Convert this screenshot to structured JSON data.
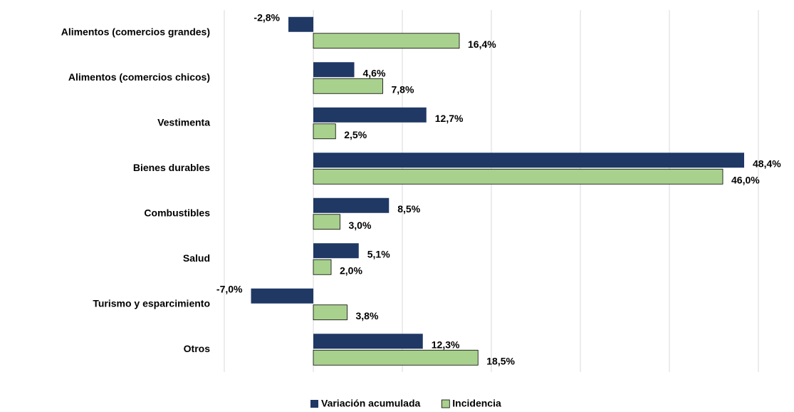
{
  "chart_data": {
    "type": "bar",
    "orientation": "horizontal",
    "categories": [
      "Alimentos (comercios grandes)",
      "Alimentos (comercios chicos)",
      "Vestimenta",
      "Bienes durables",
      "Combustibles",
      "Salud",
      "Turismo y esparcimiento",
      "Otros"
    ],
    "series": [
      {
        "name": "Variación acumulada",
        "color": "#1f3864",
        "values": [
          -2.8,
          4.6,
          12.7,
          48.4,
          8.5,
          5.1,
          -7.0,
          12.3
        ],
        "value_labels": [
          "-2,8%",
          "4,6%",
          "12,7%",
          "48,4%",
          "8,5%",
          "5,1%",
          "-7,0%",
          "12,3%"
        ]
      },
      {
        "name": "Incidencia",
        "color": "#a9d18e",
        "values": [
          16.4,
          7.8,
          2.5,
          46.0,
          3.0,
          2.0,
          3.8,
          18.5
        ],
        "value_labels": [
          "16,4%",
          "7,8%",
          "2,5%",
          "46,0%",
          "3,0%",
          "2,0%",
          "3,8%",
          "18,5%"
        ]
      }
    ],
    "xlim": [
      -10,
      50
    ],
    "xticks": [
      -10,
      0,
      10,
      20,
      30,
      40,
      50
    ],
    "grid": true,
    "legend": "bottom"
  }
}
